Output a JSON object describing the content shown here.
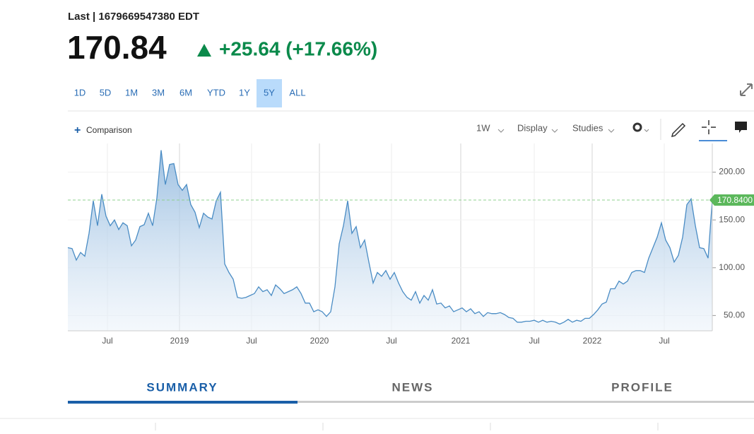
{
  "header": {
    "last": "Last | 1679669547380 EDT",
    "price": "170.84",
    "change": "+25.64 (+17.66%)"
  },
  "ranges": [
    "1D",
    "5D",
    "1M",
    "3M",
    "6M",
    "YTD",
    "1Y",
    "5Y",
    "ALL"
  ],
  "active_range": "5Y",
  "toolbar": {
    "comparison": "Comparison",
    "interval": "1W",
    "display": "Display",
    "studies": "Studies"
  },
  "chart": {
    "type": "line",
    "color": "#4a8cc4",
    "x_labels": [
      "Jul",
      "2019",
      "Jul",
      "2020",
      "Jul",
      "2021",
      "Jul",
      "2022",
      "Jul"
    ],
    "ylim": [
      34,
      230
    ],
    "yticks": [
      {
        "value": 50,
        "label": "50.00"
      },
      {
        "value": 100,
        "label": "100.00"
      },
      {
        "value": 150,
        "label": "150.00"
      },
      {
        "value": 200,
        "label": "200.00"
      }
    ],
    "last_value": 170.84,
    "last_label": "170.8400",
    "values": [
      121,
      120,
      108,
      116,
      112,
      136,
      170,
      144,
      177,
      154,
      144,
      150,
      140,
      147,
      144,
      123,
      129,
      143,
      145,
      157,
      144,
      173,
      223,
      187,
      208,
      209,
      187,
      181,
      187,
      166,
      158,
      142,
      157,
      153,
      151,
      170,
      179,
      104,
      95,
      88,
      69,
      68,
      69,
      71,
      73,
      80,
      75,
      77,
      71,
      82,
      78,
      73,
      75,
      77,
      80,
      73,
      63,
      63,
      54,
      56,
      54,
      49,
      54,
      80,
      125,
      144,
      170,
      136,
      143,
      121,
      129,
      106,
      84,
      95,
      91,
      97,
      88,
      95,
      84,
      75,
      69,
      66,
      75,
      63,
      71,
      66,
      77,
      62,
      63,
      58,
      60,
      54,
      56,
      58,
      54,
      57,
      52,
      54,
      49,
      53,
      52,
      52,
      53,
      51,
      48,
      47,
      43,
      43,
      44,
      44,
      45,
      43,
      45,
      43,
      44,
      43,
      41,
      43,
      46,
      43,
      45,
      44,
      47,
      47,
      51,
      56,
      62,
      64,
      78,
      78,
      86,
      83,
      86,
      95,
      97,
      97,
      95,
      110,
      121,
      132,
      147,
      129,
      121,
      106,
      113,
      132,
      166,
      172,
      144,
      121,
      120,
      110,
      170.84
    ]
  },
  "tabs": [
    "SUMMARY",
    "NEWS",
    "PROFILE"
  ]
}
